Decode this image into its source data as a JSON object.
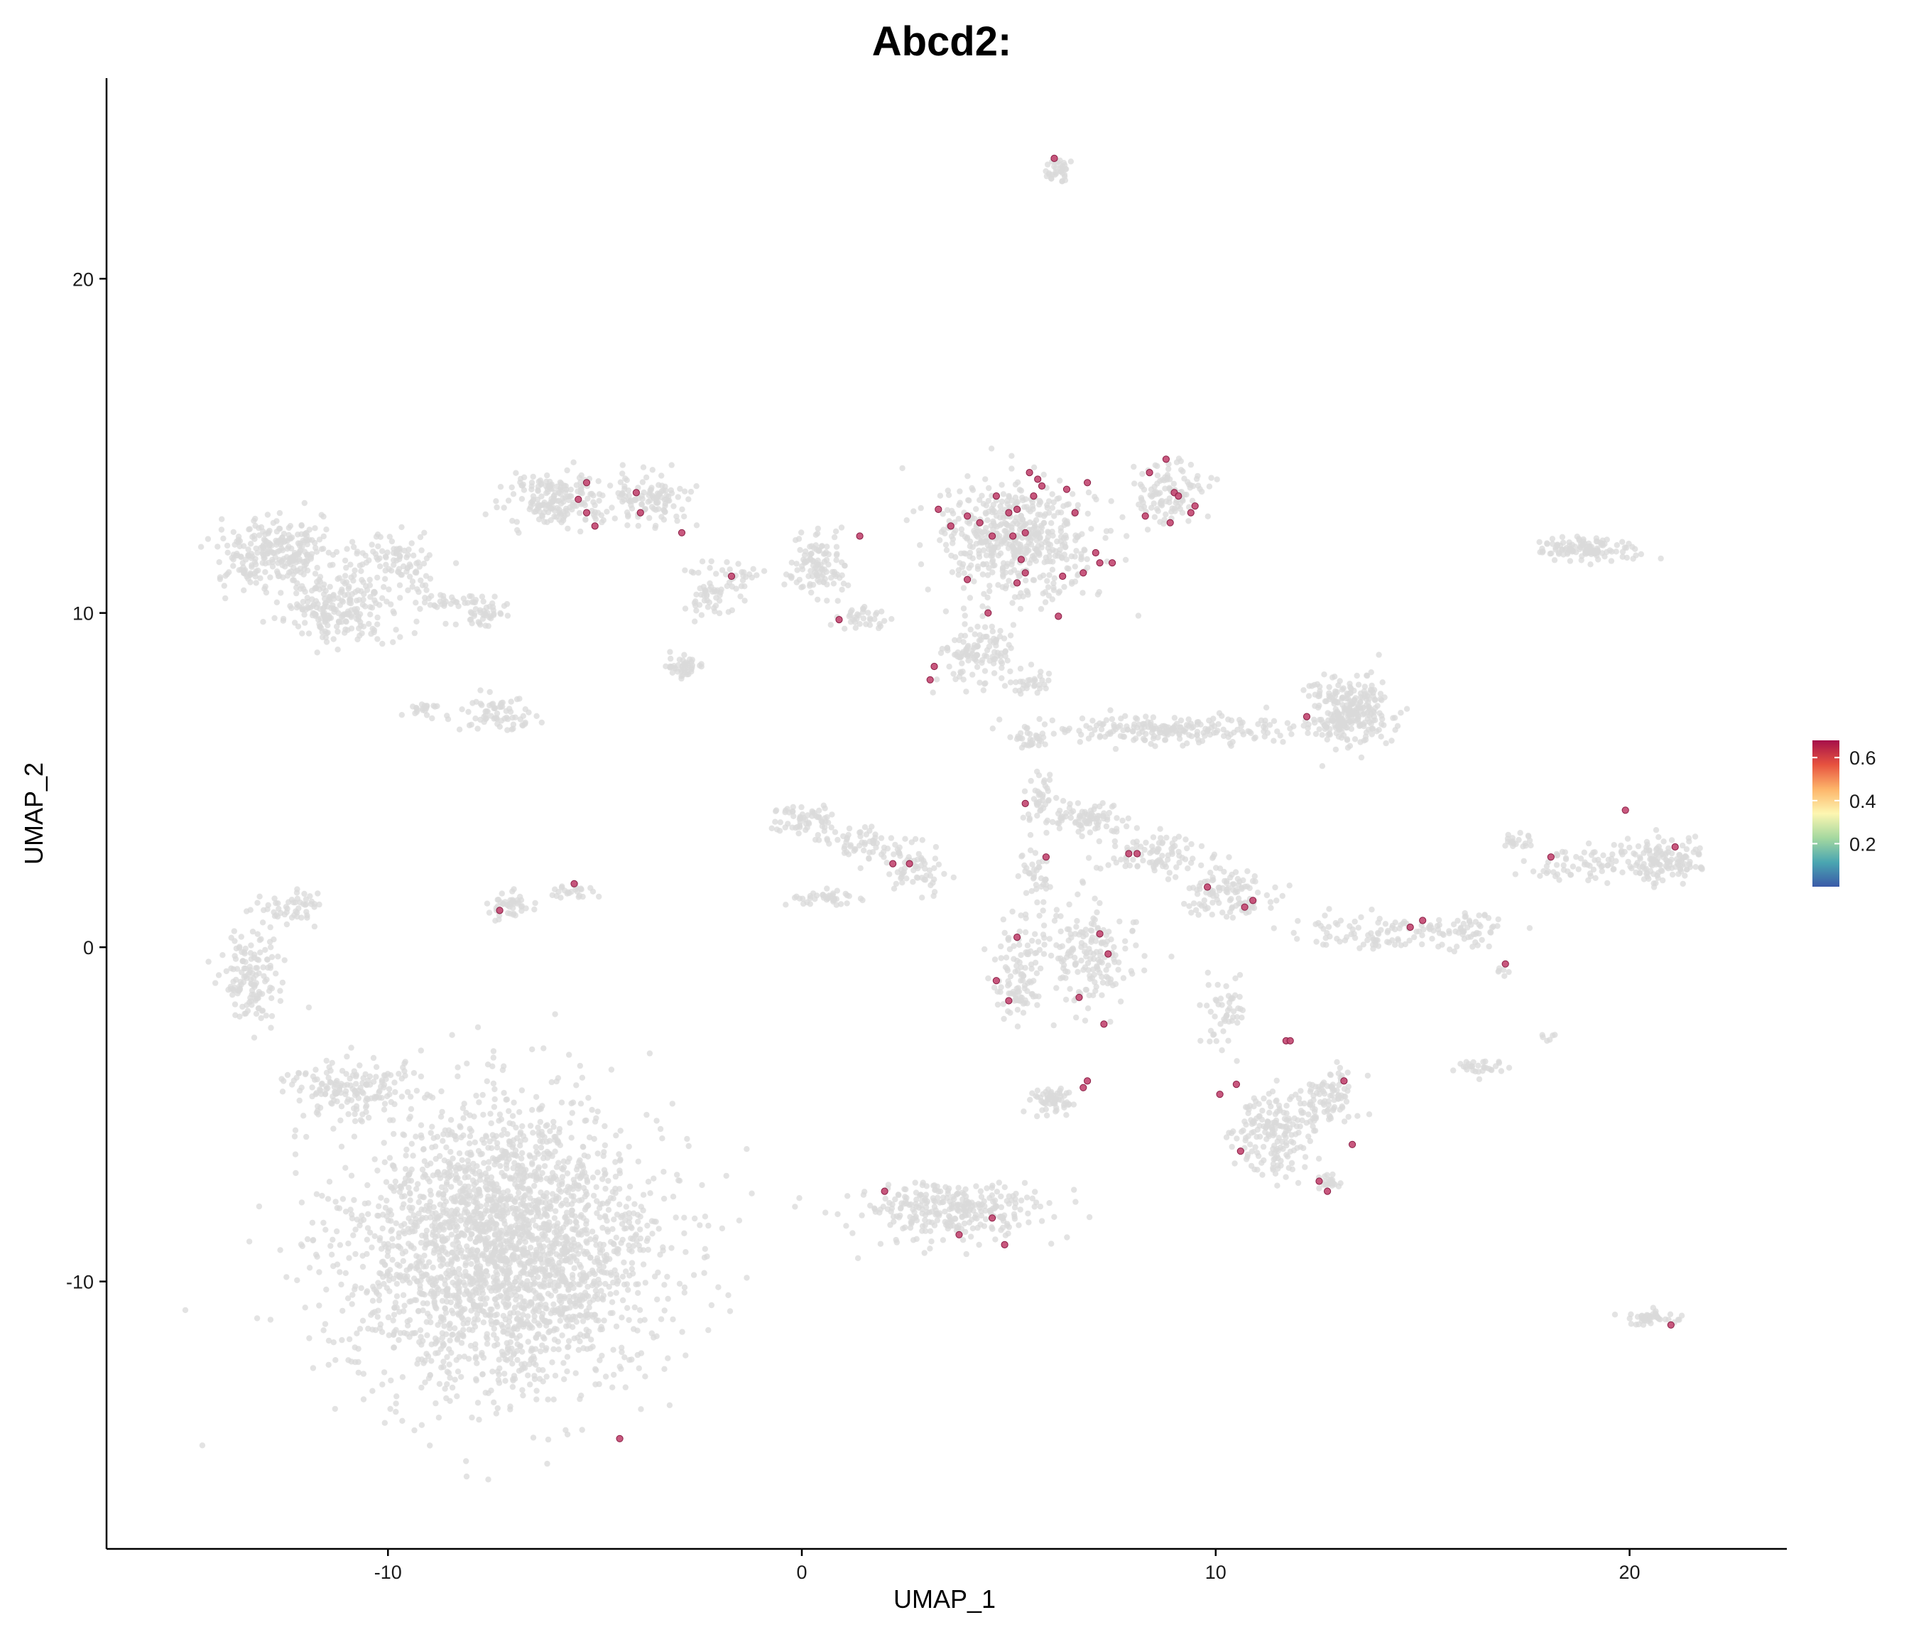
{
  "chart_data": {
    "type": "scatter",
    "title": "Abcd2:",
    "xlabel": "UMAP_1",
    "ylabel": "UMAP_2",
    "xlim": [
      -16.8,
      23.8
    ],
    "ylim": [
      -18.0,
      26.0
    ],
    "xticks": [
      -10,
      0,
      10,
      20
    ],
    "yticks": [
      -10,
      0,
      10,
      20
    ],
    "xtick_labels": [
      "-10",
      "0",
      "10",
      "20"
    ],
    "ytick_labels": [
      "-10",
      "0",
      "10",
      "20"
    ],
    "grid": false,
    "legend_position": "right",
    "colorbar": {
      "title": "",
      "range": [
        0.0,
        0.68
      ],
      "ticks": [
        0.2,
        0.4,
        0.6
      ],
      "tick_labels": [
        "0.2",
        "0.4",
        "0.6"
      ],
      "palette": [
        "#3b5aa8",
        "#4aa6b1",
        "#a4d89f",
        "#fdf6b1",
        "#fdb56a",
        "#e7533f",
        "#a50f4a"
      ]
    },
    "background_color": "#d9d9d9",
    "clusters_unexpressed": [
      {
        "cx": -7.2,
        "cy": -9.0,
        "sx": 3.0,
        "sy": 3.4,
        "n": 2600
      },
      {
        "cx": -11.0,
        "cy": -4.2,
        "sx": 1.2,
        "sy": 0.7,
        "n": 160
      },
      {
        "cx": -13.3,
        "cy": -0.8,
        "sx": 0.6,
        "sy": 1.2,
        "n": 140
      },
      {
        "cx": -12.3,
        "cy": 1.2,
        "sx": 0.6,
        "sy": 0.4,
        "n": 50
      },
      {
        "cx": -12.8,
        "cy": 11.8,
        "sx": 1.0,
        "sy": 0.8,
        "n": 260
      },
      {
        "cx": -11.2,
        "cy": 10.2,
        "sx": 1.0,
        "sy": 0.8,
        "n": 200
      },
      {
        "cx": -9.8,
        "cy": 11.6,
        "sx": 0.9,
        "sy": 0.6,
        "n": 90
      },
      {
        "cx": -7.6,
        "cy": 10.0,
        "sx": 0.35,
        "sy": 0.35,
        "n": 40
      },
      {
        "cx": -8.6,
        "cy": 10.4,
        "sx": 0.7,
        "sy": 0.2,
        "n": 30
      },
      {
        "cx": -7.4,
        "cy": 7.0,
        "sx": 0.8,
        "sy": 0.4,
        "n": 70
      },
      {
        "cx": -9.1,
        "cy": 7.1,
        "sx": 0.4,
        "sy": 0.2,
        "n": 20
      },
      {
        "cx": -7.1,
        "cy": 1.3,
        "sx": 0.4,
        "sy": 0.3,
        "n": 45
      },
      {
        "cx": -5.5,
        "cy": 1.7,
        "sx": 0.4,
        "sy": 0.2,
        "n": 25
      },
      {
        "cx": -5.8,
        "cy": 13.4,
        "sx": 1.1,
        "sy": 0.6,
        "n": 190
      },
      {
        "cx": -3.7,
        "cy": 13.4,
        "sx": 0.8,
        "sy": 0.6,
        "n": 110
      },
      {
        "cx": -2.2,
        "cy": 10.6,
        "sx": 0.5,
        "sy": 0.7,
        "n": 50
      },
      {
        "cx": -2.9,
        "cy": 8.4,
        "sx": 0.3,
        "sy": 0.3,
        "n": 45
      },
      {
        "cx": -1.5,
        "cy": 11.0,
        "sx": 0.5,
        "sy": 0.3,
        "n": 25
      },
      {
        "cx": 0.4,
        "cy": 11.4,
        "sx": 0.6,
        "sy": 0.7,
        "n": 110
      },
      {
        "cx": 1.4,
        "cy": 9.8,
        "sx": 0.4,
        "sy": 0.3,
        "n": 35
      },
      {
        "cx": 5.2,
        "cy": 12.2,
        "sx": 1.5,
        "sy": 1.4,
        "n": 520
      },
      {
        "cx": 4.3,
        "cy": 8.8,
        "sx": 0.7,
        "sy": 0.8,
        "n": 120
      },
      {
        "cx": 5.5,
        "cy": 7.9,
        "sx": 0.4,
        "sy": 0.3,
        "n": 30
      },
      {
        "cx": 8.9,
        "cy": 13.6,
        "sx": 0.7,
        "sy": 0.7,
        "n": 110
      },
      {
        "cx": 6.2,
        "cy": 23.2,
        "sx": 0.25,
        "sy": 0.35,
        "n": 35
      },
      {
        "cx": 0.0,
        "cy": 3.8,
        "sx": 0.6,
        "sy": 0.4,
        "n": 60
      },
      {
        "cx": 1.6,
        "cy": 3.1,
        "sx": 0.9,
        "sy": 0.4,
        "n": 70
      },
      {
        "cx": 2.8,
        "cy": 2.3,
        "sx": 0.5,
        "sy": 0.5,
        "n": 50
      },
      {
        "cx": 0.6,
        "cy": 1.5,
        "sx": 0.8,
        "sy": 0.2,
        "n": 40
      },
      {
        "cx": 9.0,
        "cy": 6.5,
        "sx": 2.8,
        "sy": 0.35,
        "n": 220
      },
      {
        "cx": 13.2,
        "cy": 7.0,
        "sx": 0.8,
        "sy": 0.8,
        "n": 260
      },
      {
        "cx": 5.5,
        "cy": 6.2,
        "sx": 0.4,
        "sy": 0.2,
        "n": 30
      },
      {
        "cx": 6.8,
        "cy": 3.8,
        "sx": 0.8,
        "sy": 0.4,
        "n": 90
      },
      {
        "cx": 8.5,
        "cy": 2.8,
        "sx": 1.0,
        "sy": 0.5,
        "n": 90
      },
      {
        "cx": 10.3,
        "cy": 1.6,
        "sx": 1.0,
        "sy": 0.6,
        "n": 110
      },
      {
        "cx": 5.8,
        "cy": 4.5,
        "sx": 0.3,
        "sy": 0.6,
        "n": 35
      },
      {
        "cx": 5.7,
        "cy": 2.2,
        "sx": 0.3,
        "sy": 0.8,
        "n": 40
      },
      {
        "cx": 5.2,
        "cy": -0.8,
        "sx": 0.5,
        "sy": 1.2,
        "n": 110
      },
      {
        "cx": 6.9,
        "cy": -0.3,
        "sx": 0.9,
        "sy": 1.2,
        "n": 170
      },
      {
        "cx": 6.1,
        "cy": -4.6,
        "sx": 0.5,
        "sy": 0.3,
        "n": 60
      },
      {
        "cx": 10.2,
        "cy": -2.0,
        "sx": 0.4,
        "sy": 0.9,
        "n": 50
      },
      {
        "cx": 11.4,
        "cy": -5.5,
        "sx": 0.8,
        "sy": 1.0,
        "n": 180
      },
      {
        "cx": 12.7,
        "cy": -4.4,
        "sx": 0.6,
        "sy": 0.6,
        "n": 90
      },
      {
        "cx": 12.7,
        "cy": -7.0,
        "sx": 0.3,
        "sy": 0.2,
        "n": 20
      },
      {
        "cx": 14.1,
        "cy": 0.4,
        "sx": 1.8,
        "sy": 0.4,
        "n": 110
      },
      {
        "cx": 16.3,
        "cy": 0.6,
        "sx": 0.5,
        "sy": 0.3,
        "n": 35
      },
      {
        "cx": 17.3,
        "cy": 3.2,
        "sx": 0.3,
        "sy": 0.2,
        "n": 20
      },
      {
        "cx": 18.7,
        "cy": 2.5,
        "sx": 1.0,
        "sy": 0.4,
        "n": 60
      },
      {
        "cx": 20.8,
        "cy": 2.6,
        "sx": 0.8,
        "sy": 0.5,
        "n": 140
      },
      {
        "cx": 18.9,
        "cy": 11.9,
        "sx": 0.9,
        "sy": 0.25,
        "n": 120
      },
      {
        "cx": 16.5,
        "cy": -3.6,
        "sx": 0.5,
        "sy": 0.2,
        "n": 30
      },
      {
        "cx": 16.9,
        "cy": -0.7,
        "sx": 0.15,
        "sy": 0.15,
        "n": 6
      },
      {
        "cx": 18.0,
        "cy": -2.7,
        "sx": 0.15,
        "sy": 0.1,
        "n": 6
      },
      {
        "cx": 20.5,
        "cy": -11.1,
        "sx": 0.5,
        "sy": 0.2,
        "n": 45
      },
      {
        "cx": 3.6,
        "cy": -7.9,
        "sx": 2.0,
        "sy": 0.7,
        "n": 300
      },
      {
        "cx": -10.6,
        "cy": 9.9,
        "sx": 1.8,
        "sy": 1.0,
        "n": 40
      }
    ],
    "expressed_points": [
      [
        6.1,
        23.6
      ],
      [
        -5.2,
        13.9
      ],
      [
        -5.4,
        13.4
      ],
      [
        -5.0,
        12.6
      ],
      [
        -5.2,
        13.0
      ],
      [
        -4.0,
        13.6
      ],
      [
        -3.9,
        13.0
      ],
      [
        -2.9,
        12.4
      ],
      [
        -1.7,
        11.1
      ],
      [
        1.4,
        12.3
      ],
      [
        0.9,
        9.8
      ],
      [
        3.3,
        13.1
      ],
      [
        3.6,
        12.6
      ],
      [
        4.0,
        12.9
      ],
      [
        4.3,
        12.7
      ],
      [
        4.6,
        12.3
      ],
      [
        4.7,
        13.5
      ],
      [
        5.1,
        12.3
      ],
      [
        5.0,
        13.0
      ],
      [
        5.2,
        13.1
      ],
      [
        5.4,
        12.4
      ],
      [
        5.5,
        14.2
      ],
      [
        5.6,
        13.5
      ],
      [
        5.7,
        14.0
      ],
      [
        5.8,
        13.8
      ],
      [
        5.3,
        11.6
      ],
      [
        5.4,
        11.2
      ],
      [
        5.2,
        10.9
      ],
      [
        6.3,
        11.1
      ],
      [
        6.4,
        13.7
      ],
      [
        6.6,
        13.0
      ],
      [
        6.9,
        13.9
      ],
      [
        6.8,
        11.2
      ],
      [
        7.1,
        11.8
      ],
      [
        7.2,
        11.5
      ],
      [
        7.5,
        11.5
      ],
      [
        4.0,
        11.0
      ],
      [
        4.5,
        10.0
      ],
      [
        6.2,
        9.9
      ],
      [
        3.2,
        8.4
      ],
      [
        3.1,
        8.0
      ],
      [
        8.3,
        12.9
      ],
      [
        8.4,
        14.2
      ],
      [
        8.8,
        14.6
      ],
      [
        8.9,
        12.7
      ],
      [
        9.0,
        13.6
      ],
      [
        9.1,
        13.5
      ],
      [
        9.4,
        13.0
      ],
      [
        9.5,
        13.2
      ],
      [
        12.2,
        6.9
      ],
      [
        5.4,
        4.3
      ],
      [
        5.9,
        2.7
      ],
      [
        7.9,
        2.8
      ],
      [
        8.1,
        2.8
      ],
      [
        9.8,
        1.8
      ],
      [
        10.7,
        1.2
      ],
      [
        10.9,
        1.4
      ],
      [
        2.2,
        2.5
      ],
      [
        2.6,
        2.5
      ],
      [
        -7.3,
        1.1
      ],
      [
        -5.5,
        1.9
      ],
      [
        5.2,
        0.3
      ],
      [
        4.7,
        -1.0
      ],
      [
        5.0,
        -1.6
      ],
      [
        6.7,
        -1.5
      ],
      [
        7.2,
        0.4
      ],
      [
        7.4,
        -0.2
      ],
      [
        7.3,
        -2.3
      ],
      [
        6.8,
        -4.2
      ],
      [
        6.9,
        -4.0
      ],
      [
        10.1,
        -4.4
      ],
      [
        10.5,
        -4.1
      ],
      [
        10.6,
        -6.1
      ],
      [
        11.7,
        -2.8
      ],
      [
        11.8,
        -2.8
      ],
      [
        13.1,
        -4.0
      ],
      [
        13.3,
        -5.9
      ],
      [
        12.5,
        -7.0
      ],
      [
        12.7,
        -7.3
      ],
      [
        14.7,
        0.6
      ],
      [
        15.0,
        0.8
      ],
      [
        17.0,
        -0.5
      ],
      [
        18.1,
        2.7
      ],
      [
        19.9,
        4.1
      ],
      [
        21.1,
        3.0
      ],
      [
        21.0,
        -11.3
      ],
      [
        2.0,
        -7.3
      ],
      [
        3.8,
        -8.6
      ],
      [
        4.6,
        -8.1
      ],
      [
        4.9,
        -8.9
      ],
      [
        -4.4,
        -14.7
      ]
    ]
  }
}
